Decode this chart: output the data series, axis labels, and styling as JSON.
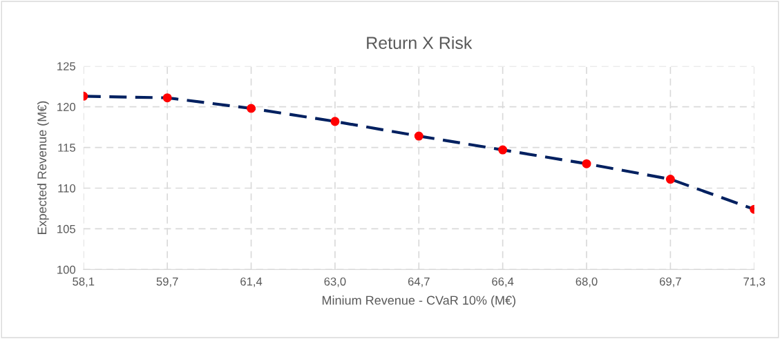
{
  "chart_data": {
    "type": "line",
    "title": "Return X Risk",
    "xlabel": "Minium Revenue - CVaR 10% (M€)",
    "ylabel": "Expected Revenue (M€)",
    "x": [
      58.1,
      59.75,
      61.4,
      63.05,
      64.7,
      66.35,
      68.0,
      69.65,
      71.3
    ],
    "series": [
      {
        "color": "#002060",
        "line_style": "dashed",
        "marker": "none",
        "values": [
          121.3,
          121.1,
          119.8,
          118.2,
          116.4,
          114.7,
          113.0,
          111.1,
          107.4
        ]
      },
      {
        "type": "scatter",
        "color": "#ff0000",
        "marker": "circle",
        "values": [
          121.3,
          121.1,
          119.8,
          118.2,
          116.4,
          114.7,
          113.0,
          111.1,
          107.4
        ]
      }
    ],
    "xlim": [
      58.1,
      71.3
    ],
    "xticks": [
      {
        "value": 58.1,
        "label": "58,1"
      },
      {
        "value": 59.75,
        "label": "59,7"
      },
      {
        "value": 61.4,
        "label": "61,4"
      },
      {
        "value": 63.05,
        "label": "63,0"
      },
      {
        "value": 64.7,
        "label": "64,7"
      },
      {
        "value": 66.35,
        "label": "66,4"
      },
      {
        "value": 68.0,
        "label": "68,0"
      },
      {
        "value": 69.65,
        "label": "69,7"
      },
      {
        "value": 71.3,
        "label": "71,3"
      }
    ],
    "ylim": [
      100,
      125
    ],
    "yticks": [
      100,
      105,
      110,
      115,
      120,
      125
    ],
    "grid": true,
    "legend": false
  }
}
